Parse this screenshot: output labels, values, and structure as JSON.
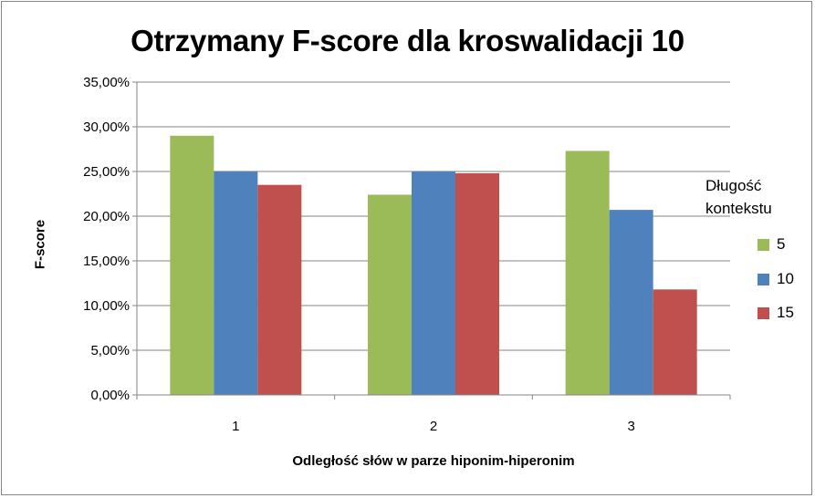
{
  "chart_data": {
    "type": "bar",
    "title": "Otrzymany F-score dla kroswalidacji 10",
    "xlabel": "Odległość słów w parze hiponim-hiperonim",
    "ylabel": "F-score",
    "categories": [
      "1",
      "2",
      "3"
    ],
    "series": [
      {
        "name": "5",
        "color": "#9BBB59",
        "values": [
          29.0,
          22.4,
          27.3
        ]
      },
      {
        "name": "10",
        "color": "#4F81BD",
        "values": [
          25.0,
          25.0,
          20.7
        ]
      },
      {
        "name": "15",
        "color": "#C0504D",
        "values": [
          23.5,
          24.8,
          11.8
        ]
      }
    ],
    "ylim": [
      0,
      35
    ],
    "yticks": [
      "0,00%",
      "5,00%",
      "10,00%",
      "15,00%",
      "20,00%",
      "25,00%",
      "30,00%",
      "35,00%"
    ],
    "legend_title": [
      "Długość",
      "kontekstu"
    ],
    "legend_position": "right",
    "grid": true
  }
}
